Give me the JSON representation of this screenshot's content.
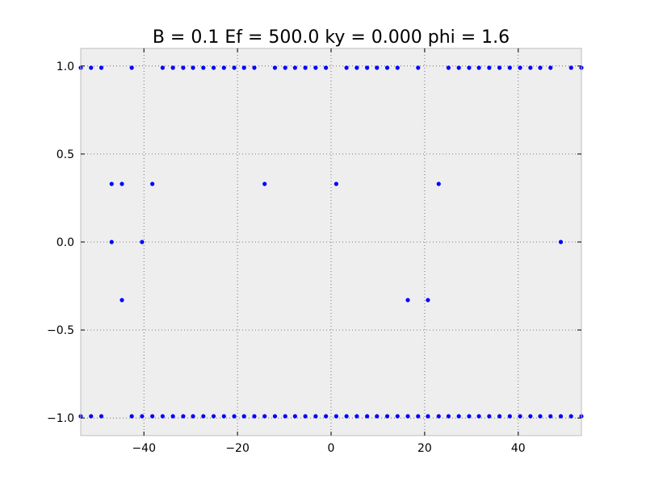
{
  "chart_data": {
    "type": "scatter",
    "title": "B = 0.1 Ef = 500.0 ky = 0.000 phi = 1.6",
    "xlabel": "",
    "ylabel": "",
    "xlim": [
      -53.5,
      53.5
    ],
    "ylim": [
      -1.1,
      1.1
    ],
    "x_ticks": [
      -40,
      -20,
      0,
      20,
      40
    ],
    "x_tick_labels": [
      "−40",
      "−20",
      "0",
      "20",
      "40"
    ],
    "y_ticks": [
      1.0,
      0.5,
      0.0,
      -0.5,
      -1.0
    ],
    "y_tick_labels": [
      "1.0",
      "0.5",
      "0.0",
      "−0.5",
      "−1.0"
    ],
    "grid": true,
    "background": "#eeeeee",
    "marker_color": "#0000ff",
    "series": [
      {
        "points": [
          [
            -53.5,
            0.99
          ],
          [
            -51.3,
            0.99
          ],
          [
            -49.1,
            0.99
          ],
          [
            -42.6,
            0.99
          ],
          [
            -36.0,
            0.99
          ],
          [
            -33.8,
            0.99
          ],
          [
            -31.6,
            0.99
          ],
          [
            -29.5,
            0.99
          ],
          [
            -27.3,
            0.99
          ],
          [
            -25.1,
            0.99
          ],
          [
            -22.9,
            0.99
          ],
          [
            -20.7,
            0.99
          ],
          [
            -18.6,
            0.99
          ],
          [
            -16.4,
            0.99
          ],
          [
            -12.0,
            0.99
          ],
          [
            -9.8,
            0.99
          ],
          [
            -7.7,
            0.99
          ],
          [
            -5.5,
            0.99
          ],
          [
            -3.3,
            0.99
          ],
          [
            -1.1,
            0.99
          ],
          [
            3.3,
            0.99
          ],
          [
            5.5,
            0.99
          ],
          [
            7.7,
            0.99
          ],
          [
            9.8,
            0.99
          ],
          [
            12.0,
            0.99
          ],
          [
            14.2,
            0.99
          ],
          [
            18.6,
            0.99
          ],
          [
            25.1,
            0.99
          ],
          [
            27.3,
            0.99
          ],
          [
            29.5,
            0.99
          ],
          [
            31.6,
            0.99
          ],
          [
            33.8,
            0.99
          ],
          [
            36.0,
            0.99
          ],
          [
            38.2,
            0.99
          ],
          [
            40.4,
            0.99
          ],
          [
            42.6,
            0.99
          ],
          [
            44.7,
            0.99
          ],
          [
            46.9,
            0.99
          ],
          [
            51.3,
            0.99
          ],
          [
            53.5,
            0.99
          ],
          [
            -46.9,
            0.33
          ],
          [
            -44.7,
            0.33
          ],
          [
            -38.2,
            0.33
          ],
          [
            -14.2,
            0.33
          ],
          [
            1.1,
            0.33
          ],
          [
            23.0,
            0.33
          ],
          [
            -46.9,
            0.0
          ],
          [
            -40.4,
            0.0
          ],
          [
            49.1,
            0.0
          ],
          [
            -44.7,
            -0.33
          ],
          [
            16.4,
            -0.33
          ],
          [
            20.7,
            -0.33
          ],
          [
            -53.5,
            -0.99
          ],
          [
            -51.3,
            -0.99
          ],
          [
            -49.1,
            -0.99
          ],
          [
            -42.6,
            -0.99
          ],
          [
            -40.4,
            -0.99
          ],
          [
            -38.2,
            -0.99
          ],
          [
            -36.0,
            -0.99
          ],
          [
            -33.8,
            -0.99
          ],
          [
            -31.6,
            -0.99
          ],
          [
            -29.5,
            -0.99
          ],
          [
            -27.3,
            -0.99
          ],
          [
            -25.1,
            -0.99
          ],
          [
            -22.9,
            -0.99
          ],
          [
            -20.7,
            -0.99
          ],
          [
            -18.6,
            -0.99
          ],
          [
            -16.4,
            -0.99
          ],
          [
            -14.2,
            -0.99
          ],
          [
            -12.0,
            -0.99
          ],
          [
            -9.8,
            -0.99
          ],
          [
            -7.7,
            -0.99
          ],
          [
            -5.5,
            -0.99
          ],
          [
            -3.3,
            -0.99
          ],
          [
            -1.1,
            -0.99
          ],
          [
            1.1,
            -0.99
          ],
          [
            3.3,
            -0.99
          ],
          [
            5.5,
            -0.99
          ],
          [
            7.7,
            -0.99
          ],
          [
            9.8,
            -0.99
          ],
          [
            12.0,
            -0.99
          ],
          [
            14.2,
            -0.99
          ],
          [
            16.4,
            -0.99
          ],
          [
            18.6,
            -0.99
          ],
          [
            20.7,
            -0.99
          ],
          [
            23.0,
            -0.99
          ],
          [
            25.1,
            -0.99
          ],
          [
            27.3,
            -0.99
          ],
          [
            29.5,
            -0.99
          ],
          [
            31.6,
            -0.99
          ],
          [
            33.8,
            -0.99
          ],
          [
            36.0,
            -0.99
          ],
          [
            38.2,
            -0.99
          ],
          [
            40.4,
            -0.99
          ],
          [
            42.6,
            -0.99
          ],
          [
            44.7,
            -0.99
          ],
          [
            46.9,
            -0.99
          ],
          [
            49.1,
            -0.99
          ],
          [
            51.3,
            -0.99
          ],
          [
            53.5,
            -0.99
          ]
        ]
      }
    ]
  }
}
